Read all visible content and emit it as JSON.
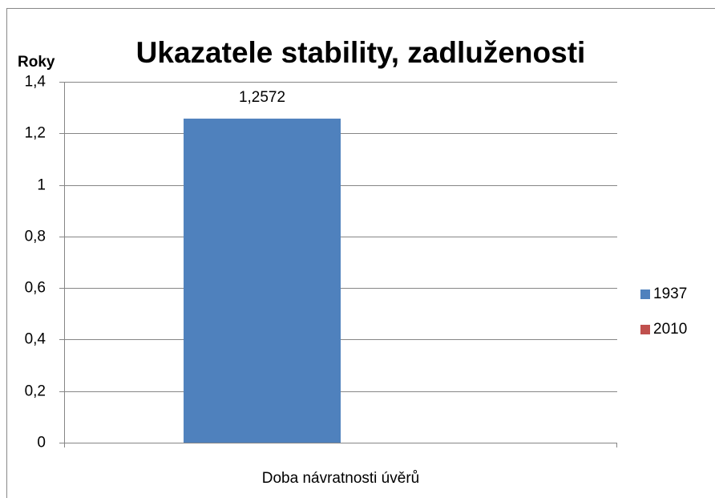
{
  "chart_data": {
    "type": "bar",
    "title": "Ukazatele stability, zadluženosti",
    "y_label": "Roky",
    "categories": [
      "Doba návratnosti úvěrů"
    ],
    "series": [
      {
        "name": "1937",
        "color": "#4f81bd",
        "values": [
          1.2572
        ],
        "value_labels": [
          "1,2572"
        ]
      },
      {
        "name": "2010",
        "color": "#c0504d",
        "values": [
          null
        ]
      }
    ],
    "ylim": [
      0,
      1.4
    ],
    "yticks": [
      0,
      {
        "value": 0.2,
        "label": "0,2"
      },
      {
        "value": 0.4,
        "label": "0,4"
      },
      {
        "value": 0.6,
        "label": "0,6"
      },
      {
        "value": 0.8,
        "label": "0,8"
      },
      1,
      {
        "value": 1.2,
        "label": "1,2"
      },
      {
        "value": 1.4,
        "label": "1,4"
      }
    ],
    "grid": true,
    "legend": "right"
  }
}
